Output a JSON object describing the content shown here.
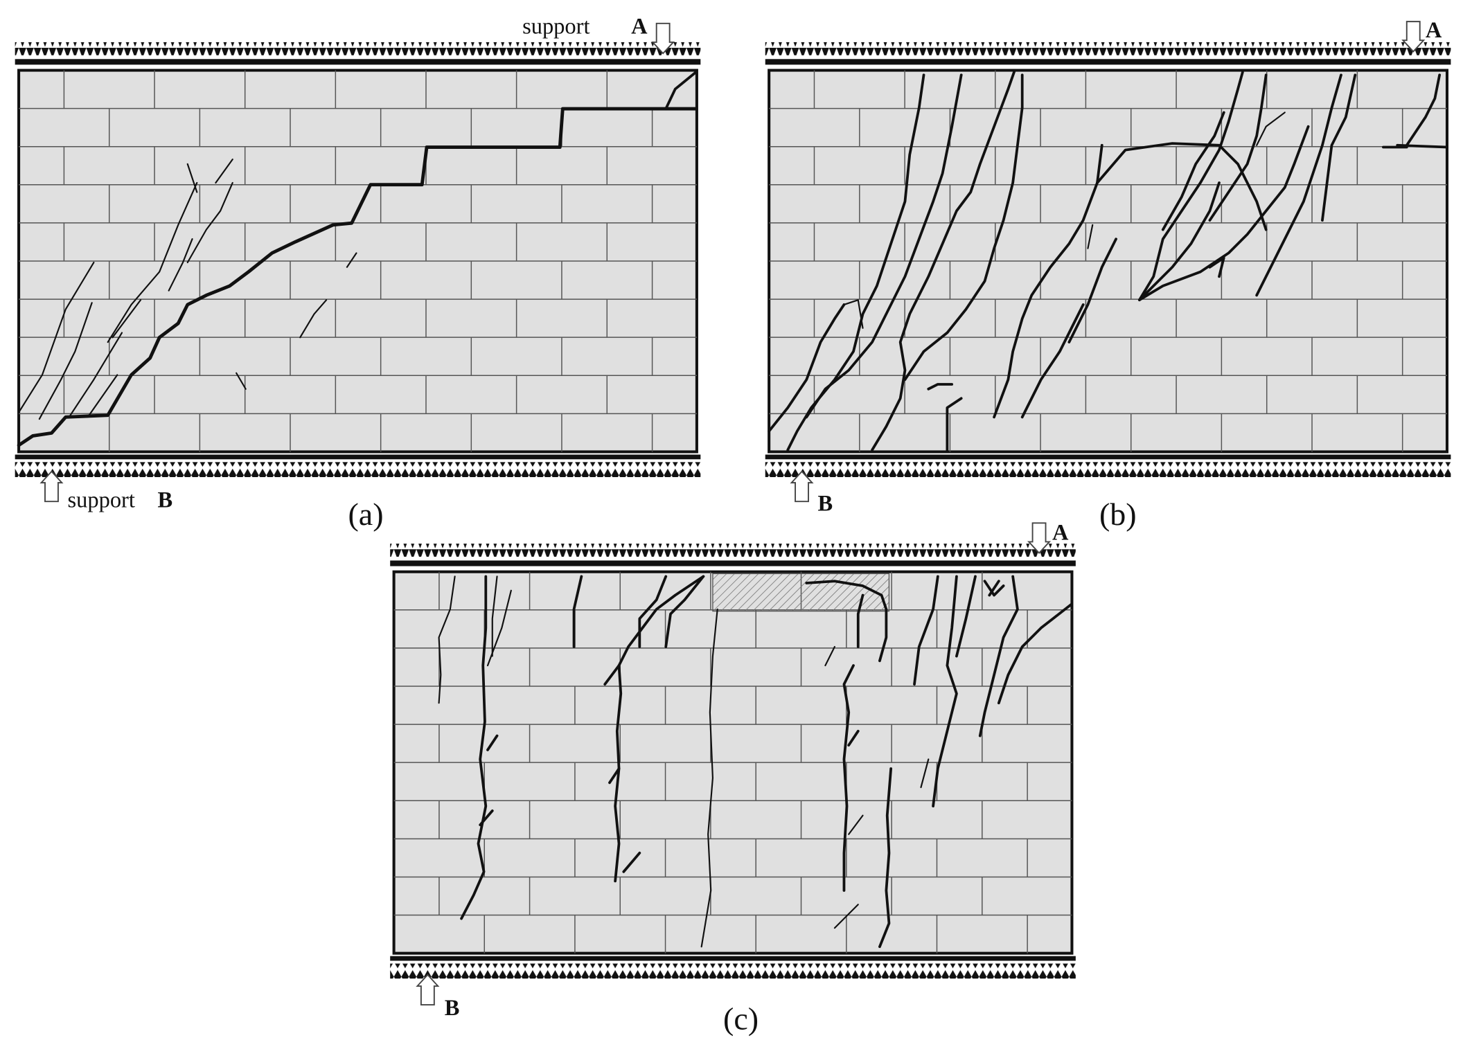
{
  "panels": [
    {
      "caption": "(a)",
      "support_top": {
        "word": "support",
        "letter": "A"
      },
      "support_bottom": {
        "word": "support",
        "letter": "B"
      }
    },
    {
      "caption": "(b)",
      "support_top": {
        "letter": "A"
      },
      "support_bottom": {
        "letter": "B"
      }
    },
    {
      "caption": "(c)",
      "support_top": {
        "letter": "A"
      },
      "support_bottom": {
        "letter": "B"
      }
    }
  ]
}
